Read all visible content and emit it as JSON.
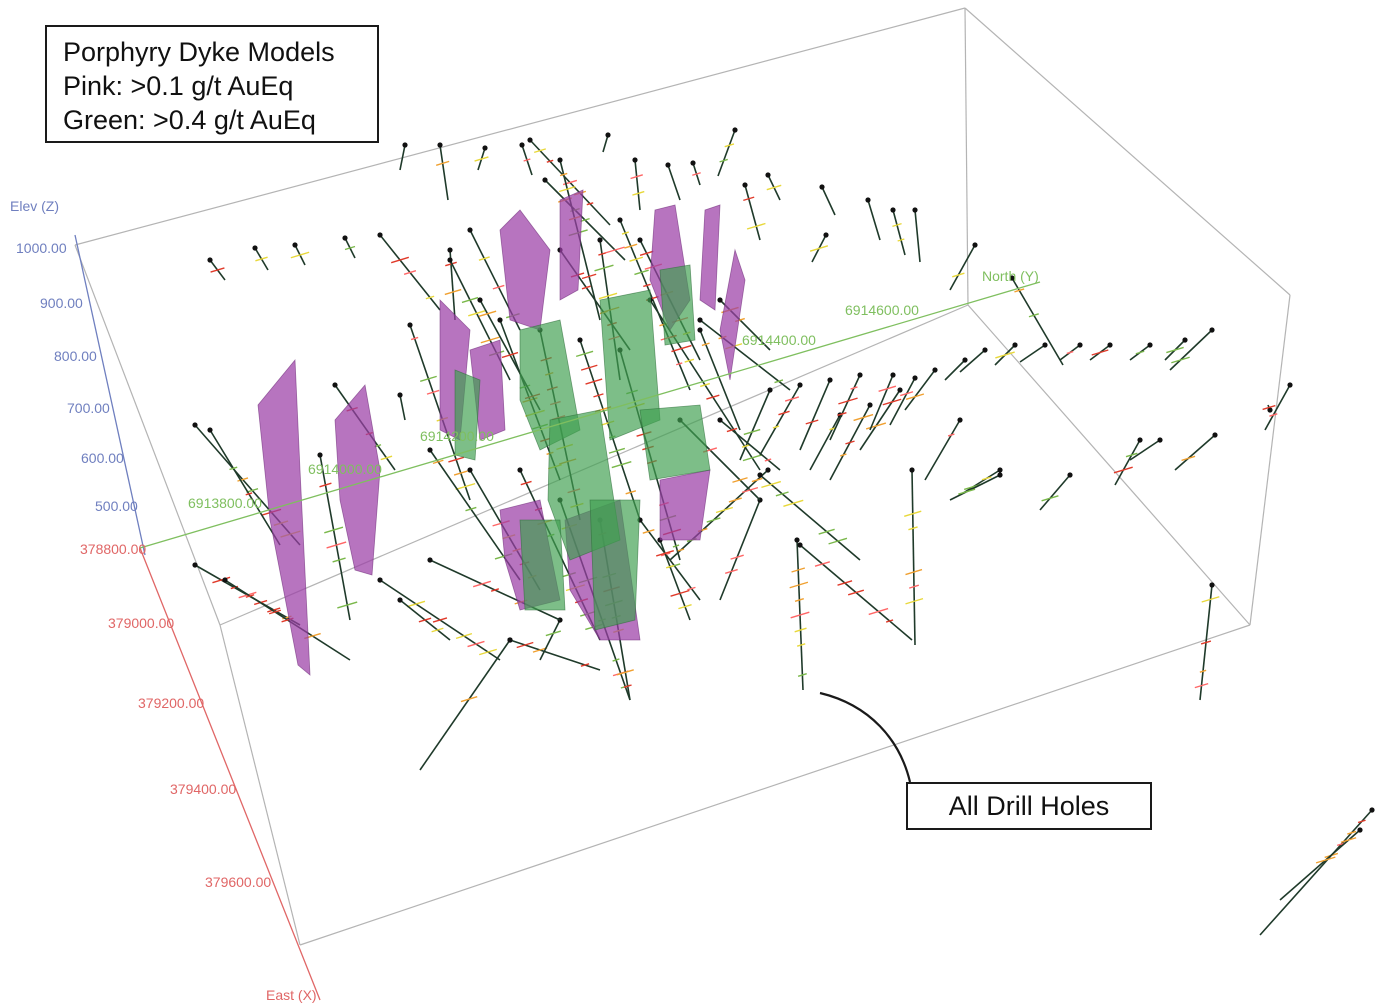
{
  "legend": {
    "title": "Porphyry Dyke Models",
    "pink": "Pink: >0.1 g/t AuEq",
    "green": "Green: >0.4 g/t AuEq"
  },
  "callout": {
    "label": "All Drill Holes"
  },
  "axes": {
    "elevation": {
      "name": "Elev (Z)",
      "color": "#6f7fbf",
      "ticks": [
        "1000.00",
        "900.00",
        "800.00",
        "700.00",
        "600.00",
        "500.00"
      ]
    },
    "east": {
      "name": "East (X)",
      "color": "#e06666",
      "ticks": [
        "378800.00",
        "379000.00",
        "379200.00",
        "379400.00",
        "379600.00"
      ]
    },
    "north": {
      "name": "North (Y)",
      "color": "#7fbf5f",
      "ticks": [
        "6914600.00",
        "6914400.00",
        "6914200.00",
        "6914000.00",
        "6913800.00"
      ]
    }
  },
  "colors": {
    "pink_dyke": "#9b3fa6",
    "green_dyke": "#3f9f4f",
    "drill_trace": "#1f3a2a",
    "box": "#b0b0b0"
  }
}
